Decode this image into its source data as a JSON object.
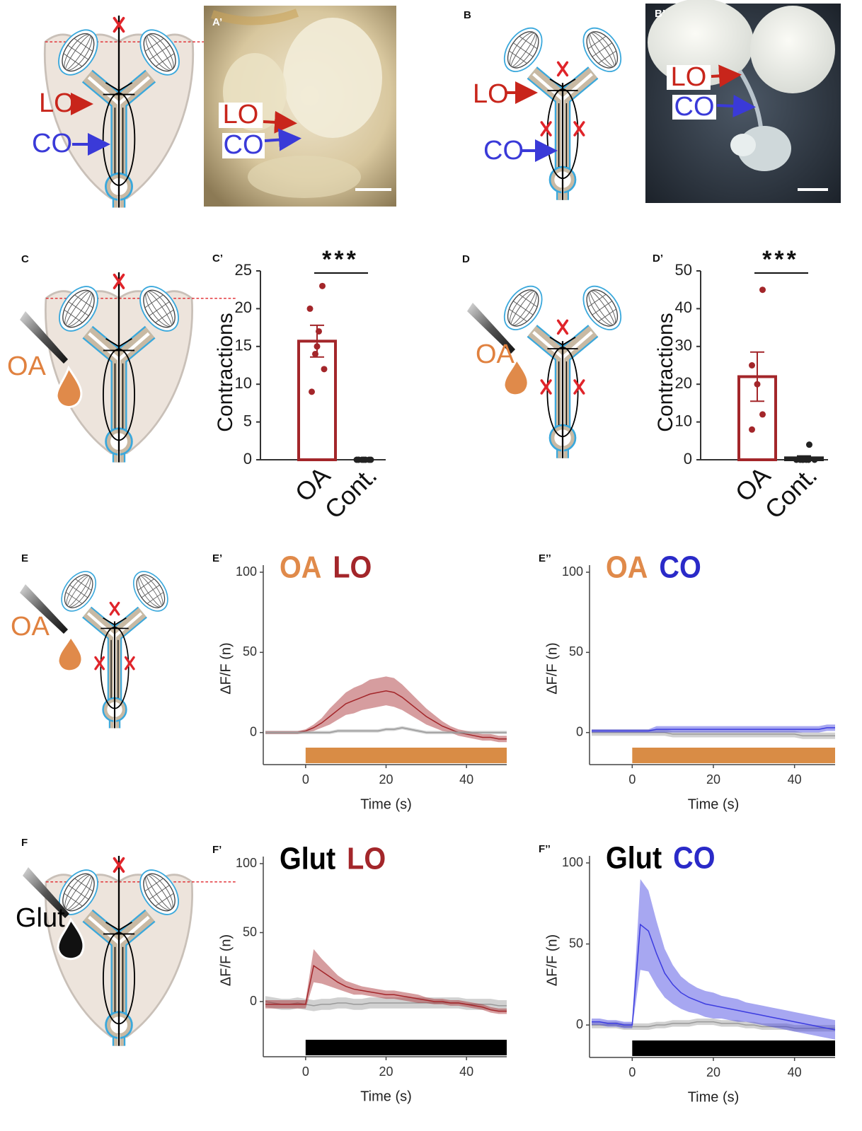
{
  "photos": [
    {
      "panel": "A’",
      "labels": [
        "LO",
        "CO"
      ]
    },
    {
      "panel": "B’",
      "labels": [
        "LO",
        "CO"
      ]
    }
  ],
  "diagrams": [
    {
      "labels": [
        "LO",
        "CO"
      ]
    },
    {
      "panel": "B",
      "labels": [
        "LO",
        "CO"
      ]
    },
    {
      "panel": "C",
      "drug": "OA"
    },
    {
      "panel": "D",
      "drug": "OA"
    },
    {
      "panel": "E",
      "drug": "OA"
    },
    {
      "panel": "F",
      "drug": "Glut"
    }
  ],
  "chart_data": [
    {
      "type": "bar",
      "panel": "C’",
      "ylabel": "Contractions",
      "categories": [
        "OA",
        "Cont."
      ],
      "values": [
        15.7,
        0
      ],
      "errors": [
        2.1,
        0
      ],
      "colors": [
        "#a3262a",
        "#222222"
      ],
      "points": [
        [
          23,
          20,
          17,
          15,
          14,
          12,
          9
        ],
        [
          0,
          0,
          0,
          0,
          0,
          0,
          0
        ]
      ],
      "significance": "***",
      "ylim": [
        0,
        25
      ],
      "yticks": [
        0,
        5,
        10,
        15,
        20,
        25
      ]
    },
    {
      "type": "bar",
      "panel": "D’",
      "ylabel": "Contractions",
      "categories": [
        "OA",
        "Cont."
      ],
      "values": [
        22,
        0.5
      ],
      "errors": [
        6.5,
        0.5
      ],
      "colors": [
        "#a3262a",
        "#222222"
      ],
      "points": [
        [
          45,
          25,
          20,
          12,
          8
        ],
        [
          4,
          0,
          0,
          0,
          0,
          0,
          0,
          0
        ]
      ],
      "significance": "***",
      "ylim": [
        0,
        50
      ],
      "yticks": [
        0,
        10,
        20,
        30,
        40,
        50
      ]
    },
    {
      "type": "line",
      "panel": "E’",
      "title_parts": [
        {
          "text": "OA",
          "color": "#e08a4a"
        },
        {
          "text": "LO",
          "color": "#a3262a"
        }
      ],
      "xlabel": "Time (s)",
      "ylabel": "ΔF/F (n)",
      "x": [
        -10,
        -8,
        -6,
        -4,
        -2,
        0,
        2,
        4,
        6,
        8,
        10,
        12,
        14,
        16,
        18,
        20,
        22,
        24,
        26,
        28,
        30,
        32,
        34,
        36,
        38,
        40,
        42,
        44,
        46,
        48,
        50
      ],
      "series": [
        {
          "color": "#a3262a",
          "values": [
            0,
            0,
            0,
            0,
            0,
            1,
            3,
            6,
            10,
            14,
            18,
            20,
            22,
            24,
            25,
            26,
            25,
            22,
            18,
            14,
            10,
            7,
            4,
            2,
            0,
            -1,
            -2,
            -3,
            -3,
            -4,
            -4
          ],
          "errors": [
            1,
            1,
            1,
            1,
            1,
            1,
            2,
            3,
            5,
            6,
            7,
            8,
            8,
            9,
            9,
            9,
            9,
            8,
            7,
            6,
            5,
            4,
            3,
            2,
            2,
            2,
            2,
            2,
            2,
            2,
            2
          ]
        },
        {
          "color": "#9a9a9a",
          "values": [
            0,
            0,
            0,
            0,
            0,
            0,
            0,
            0,
            0,
            1,
            1,
            1,
            1,
            1,
            1,
            2,
            2,
            3,
            2,
            1,
            0,
            0,
            0,
            0,
            0,
            0,
            0,
            0,
            0,
            0,
            0
          ],
          "errors": [
            1,
            1,
            1,
            1,
            1,
            1,
            1,
            1,
            1,
            1,
            1,
            1,
            1,
            1,
            1,
            1,
            1,
            1,
            1,
            1,
            1,
            1,
            1,
            1,
            1,
            1,
            1,
            1,
            1,
            1,
            1
          ]
        }
      ],
      "stimulus": [
        0,
        50
      ],
      "stimulus_color": "#d98c45",
      "xlim": [
        -10,
        50
      ],
      "xticks": [
        0,
        20,
        40
      ],
      "ylim": [
        -20,
        100
      ],
      "yticks": [
        0,
        50,
        100
      ]
    },
    {
      "type": "line",
      "panel": "E’’",
      "title_parts": [
        {
          "text": "OA",
          "color": "#e08a4a"
        },
        {
          "text": "CO",
          "color": "#2a2ac8"
        }
      ],
      "xlabel": "Time (s)",
      "ylabel": "ΔF/F (n)",
      "x": [
        -10,
        -8,
        -6,
        -4,
        -2,
        0,
        2,
        4,
        6,
        8,
        10,
        12,
        14,
        16,
        18,
        20,
        22,
        24,
        26,
        28,
        30,
        32,
        34,
        36,
        38,
        40,
        42,
        44,
        46,
        48,
        50
      ],
      "series": [
        {
          "color": "#9a9a9a",
          "values": [
            0,
            0,
            0,
            0,
            0,
            0,
            0,
            0,
            0,
            0,
            -1,
            -1,
            -1,
            -1,
            -1,
            -1,
            -1,
            -1,
            -1,
            -1,
            -1,
            -1,
            -1,
            -1,
            -1,
            -1,
            -2,
            -2,
            -2,
            -2,
            -2
          ],
          "errors": [
            2,
            2,
            2,
            2,
            2,
            2,
            2,
            2,
            2,
            2,
            2,
            2,
            2,
            2,
            2,
            2,
            2,
            2,
            2,
            2,
            2,
            2,
            2,
            2,
            2,
            2,
            2,
            2,
            2,
            2,
            2
          ]
        },
        {
          "color": "#3c3ce0",
          "values": [
            1,
            1,
            1,
            1,
            1,
            1,
            1,
            1,
            2,
            2,
            2,
            2,
            2,
            2,
            2,
            2,
            2,
            2,
            2,
            2,
            2,
            2,
            2,
            2,
            2,
            2,
            2,
            2,
            2,
            3,
            3
          ],
          "errors": [
            1,
            1,
            1,
            1,
            1,
            1,
            1,
            1,
            2,
            2,
            2,
            2,
            2,
            2,
            2,
            2,
            2,
            2,
            2,
            2,
            2,
            2,
            2,
            2,
            2,
            2,
            2,
            2,
            2,
            2,
            2
          ]
        }
      ],
      "stimulus": [
        0,
        50
      ],
      "stimulus_color": "#d98c45",
      "xlim": [
        -10,
        50
      ],
      "xticks": [
        0,
        20,
        40
      ],
      "ylim": [
        -20,
        100
      ],
      "yticks": [
        0,
        50,
        100
      ]
    },
    {
      "type": "line",
      "panel": "F’",
      "title_parts": [
        {
          "text": "Glut",
          "color": "#000000"
        },
        {
          "text": "LO",
          "color": "#a3262a"
        }
      ],
      "xlabel": "Time (s)",
      "ylabel": "ΔF/F (n)",
      "x": [
        -10,
        -8,
        -6,
        -4,
        -2,
        0,
        2,
        4,
        6,
        8,
        10,
        12,
        14,
        16,
        18,
        20,
        22,
        24,
        26,
        28,
        30,
        32,
        34,
        36,
        38,
        40,
        42,
        44,
        46,
        48,
        50
      ],
      "series": [
        {
          "color": "#9a9a9a",
          "values": [
            0,
            -1,
            -2,
            -2,
            -1,
            -2,
            -3,
            -2,
            -2,
            -1,
            -1,
            -2,
            -2,
            -1,
            -1,
            -1,
            -1,
            -1,
            -1,
            -1,
            -1,
            -1,
            -1,
            -1,
            -1,
            -2,
            -2,
            -2,
            -2,
            -3,
            -3
          ],
          "errors": [
            4,
            4,
            4,
            4,
            4,
            4,
            4,
            4,
            4,
            4,
            4,
            4,
            4,
            4,
            4,
            4,
            4,
            4,
            4,
            4,
            4,
            4,
            4,
            4,
            4,
            4,
            4,
            4,
            4,
            4,
            4
          ]
        },
        {
          "color": "#a3262a",
          "values": [
            -2,
            -2,
            -2,
            -2,
            -2,
            -2,
            26,
            22,
            18,
            14,
            11,
            9,
            8,
            7,
            6,
            5,
            5,
            4,
            3,
            2,
            1,
            0,
            0,
            -1,
            -1,
            -2,
            -3,
            -4,
            -6,
            -7,
            -7
          ],
          "errors": [
            3,
            3,
            3,
            3,
            3,
            3,
            12,
            9,
            7,
            5,
            4,
            4,
            3,
            3,
            3,
            3,
            3,
            3,
            3,
            3,
            2,
            2,
            2,
            2,
            2,
            2,
            2,
            2,
            2,
            2,
            2
          ]
        }
      ],
      "stimulus": [
        0,
        50
      ],
      "stimulus_color": "#000000",
      "xlim": [
        -10,
        50
      ],
      "xticks": [
        0,
        20,
        40
      ],
      "ylim": [
        -40,
        100
      ],
      "yticks": [
        0,
        50,
        100
      ]
    },
    {
      "type": "line",
      "panel": "F’’",
      "title_parts": [
        {
          "text": "Glut",
          "color": "#000000"
        },
        {
          "text": "CO",
          "color": "#2a2ac8"
        }
      ],
      "xlabel": "Time (s)",
      "ylabel": "ΔF/F (n)",
      "x": [
        -10,
        -8,
        -6,
        -4,
        -2,
        0,
        2,
        4,
        6,
        8,
        10,
        12,
        14,
        16,
        18,
        20,
        22,
        24,
        26,
        28,
        30,
        32,
        34,
        36,
        38,
        40,
        42,
        44,
        46,
        48,
        50
      ],
      "series": [
        {
          "color": "#9a9a9a",
          "values": [
            0,
            0,
            0,
            0,
            -1,
            -1,
            -1,
            -1,
            0,
            0,
            1,
            1,
            1,
            2,
            2,
            2,
            1,
            1,
            1,
            0,
            0,
            -1,
            -1,
            -1,
            -1,
            -2,
            -2,
            -2,
            -2,
            -2,
            -2
          ],
          "errors": [
            2,
            2,
            2,
            2,
            2,
            2,
            2,
            2,
            2,
            2,
            2,
            2,
            2,
            2,
            2,
            2,
            2,
            2,
            2,
            2,
            2,
            2,
            2,
            2,
            2,
            2,
            2,
            2,
            2,
            2,
            2
          ]
        },
        {
          "color": "#3c3ce0",
          "values": [
            2,
            2,
            1,
            1,
            0,
            0,
            62,
            58,
            44,
            32,
            25,
            20,
            17,
            15,
            13,
            12,
            11,
            10,
            9,
            8,
            7,
            6,
            5,
            4,
            3,
            2,
            1,
            0,
            -1,
            -2,
            -3
          ],
          "errors": [
            2,
            2,
            2,
            2,
            2,
            2,
            28,
            25,
            20,
            15,
            12,
            10,
            9,
            8,
            8,
            8,
            7,
            7,
            7,
            6,
            6,
            6,
            6,
            6,
            6,
            6,
            6,
            6,
            6,
            6,
            6
          ]
        }
      ],
      "stimulus": [
        0,
        50
      ],
      "stimulus_color": "#000000",
      "xlim": [
        -10,
        50
      ],
      "xticks": [
        0,
        20,
        40
      ],
      "ylim": [
        -20,
        100
      ],
      "yticks": [
        0,
        50,
        100
      ]
    }
  ]
}
